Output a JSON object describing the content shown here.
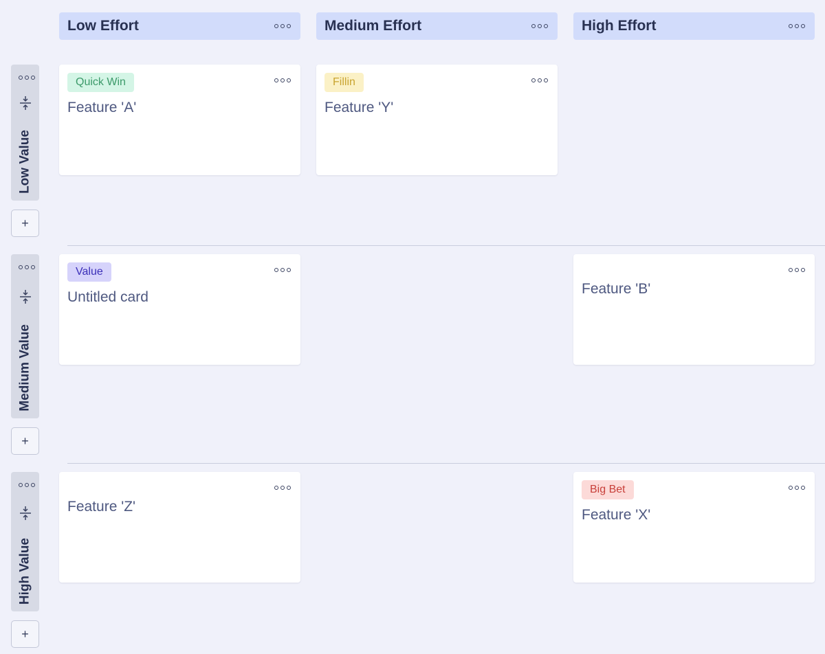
{
  "columns": [
    {
      "title": "Low Effort"
    },
    {
      "title": "Medium Effort"
    },
    {
      "title": "High Effort"
    }
  ],
  "rows": [
    {
      "title": "Low Value",
      "add_label": "+"
    },
    {
      "title": "Medium Value",
      "add_label": "+"
    },
    {
      "title": "High Value",
      "add_label": "+"
    }
  ],
  "cards": {
    "low_low": {
      "tag": "Quick Win",
      "title": "Feature 'A'"
    },
    "low_med": {
      "tag": "Fillin",
      "title": "Feature 'Y'"
    },
    "med_low": {
      "tag": "Value",
      "title": "Untitled card"
    },
    "med_high": {
      "title": "Feature 'B'"
    },
    "high_low": {
      "title": "Feature 'Z'"
    },
    "high_high": {
      "tag": "Big Bet",
      "title": "Feature 'X'"
    }
  },
  "colors": {
    "quick_win": {
      "bg": "#d4f5e6",
      "fg": "#3c9a6a"
    },
    "fillin": {
      "bg": "#fbf1c6",
      "fg": "#c9a430"
    },
    "value": {
      "bg": "#d6d3fb",
      "fg": "#3b2fb8"
    },
    "big_bet": {
      "bg": "#fcdad8",
      "fg": "#c8403a"
    }
  }
}
